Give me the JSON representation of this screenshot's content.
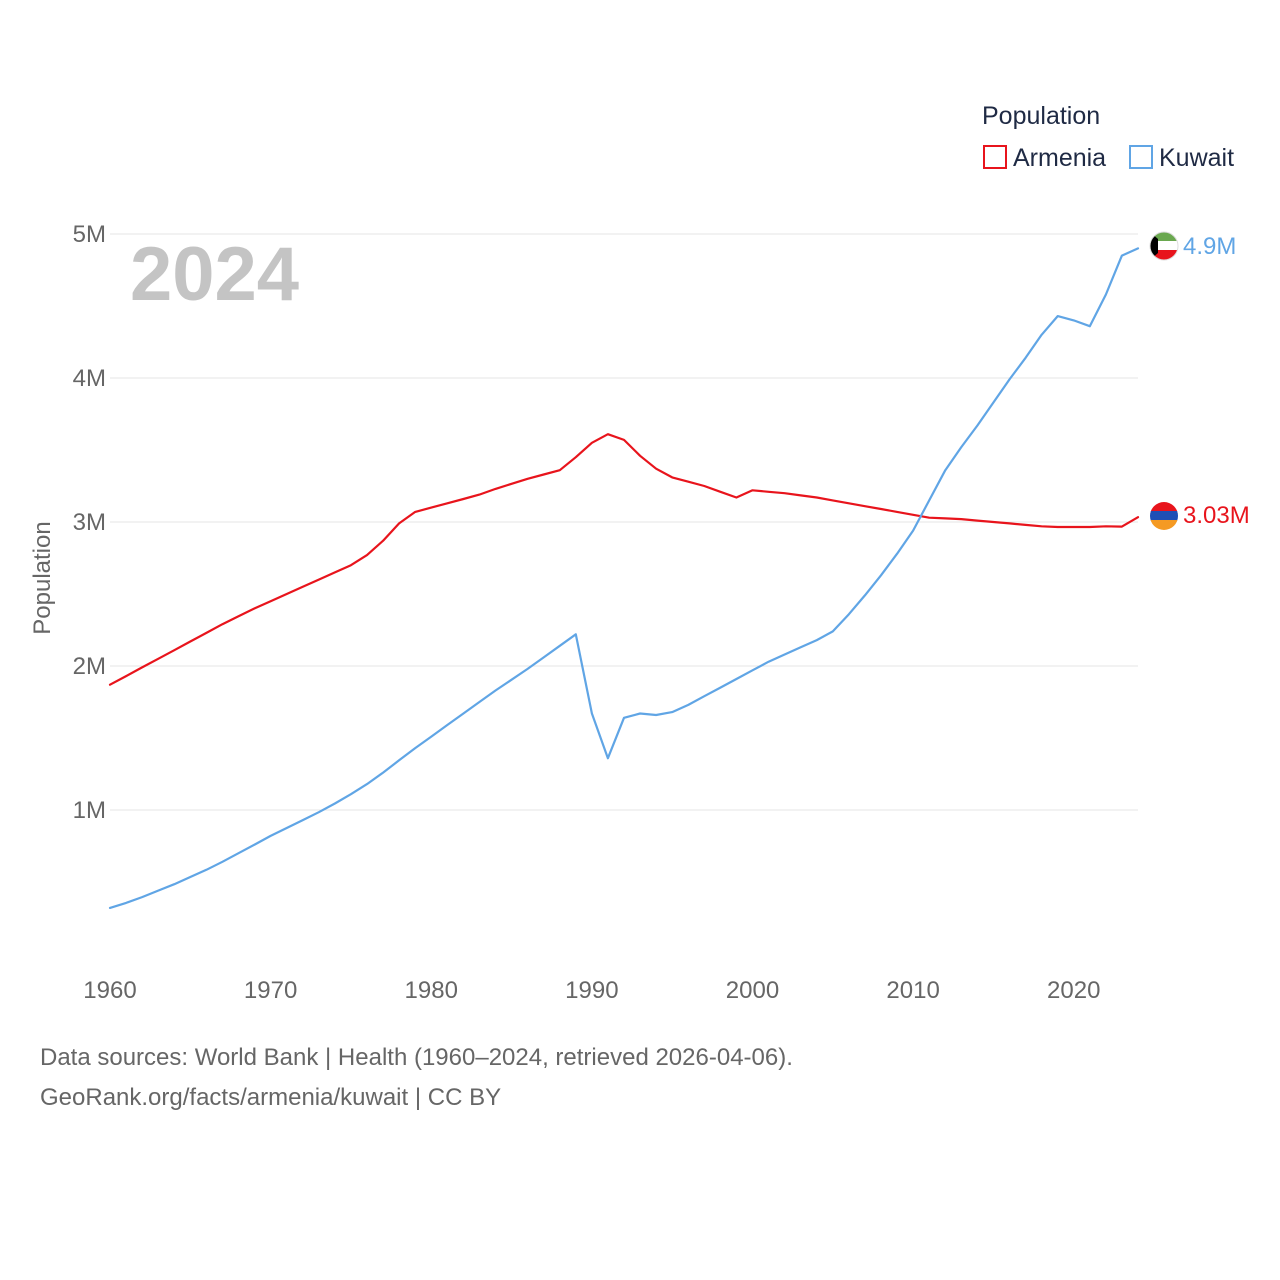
{
  "chart_data": {
    "type": "line",
    "year_watermark": "2024",
    "ylabel": "Population",
    "xlabel": "",
    "legend_title": "Population",
    "legend_position": "top-right",
    "xlim": [
      1960,
      2024
    ],
    "ylim": [
      0,
      5000000
    ],
    "x_ticks": [
      1960,
      1970,
      1980,
      1990,
      2000,
      2010,
      2020
    ],
    "x_tick_labels": [
      "1960",
      "1970",
      "1980",
      "1990",
      "2000",
      "2010",
      "2020"
    ],
    "y_ticks": [
      1000000,
      2000000,
      3000000,
      4000000,
      5000000
    ],
    "y_tick_labels": [
      "1M",
      "2M",
      "3M",
      "4M",
      "5M"
    ],
    "grid": true,
    "x": [
      1960,
      1961,
      1962,
      1963,
      1964,
      1965,
      1966,
      1967,
      1968,
      1969,
      1970,
      1971,
      1972,
      1973,
      1974,
      1975,
      1976,
      1977,
      1978,
      1979,
      1980,
      1981,
      1982,
      1983,
      1984,
      1985,
      1986,
      1987,
      1988,
      1989,
      1990,
      1991,
      1992,
      1993,
      1994,
      1995,
      1996,
      1997,
      1998,
      1999,
      2000,
      2001,
      2002,
      2003,
      2004,
      2005,
      2006,
      2007,
      2008,
      2009,
      2010,
      2011,
      2012,
      2013,
      2014,
      2015,
      2016,
      2017,
      2018,
      2019,
      2020,
      2021,
      2022,
      2023,
      2024
    ],
    "series": [
      {
        "name": "Armenia",
        "color": "#e8141c",
        "end_label": "3.03M",
        "flag": "armenia-flag",
        "values": [
          1870000,
          1930000,
          1990000,
          2050000,
          2110000,
          2170000,
          2230000,
          2290000,
          2345000,
          2400000,
          2450000,
          2500000,
          2550000,
          2600000,
          2650000,
          2700000,
          2770000,
          2870000,
          2990000,
          3070000,
          3100000,
          3130000,
          3160000,
          3190000,
          3230000,
          3265000,
          3300000,
          3330000,
          3360000,
          3450000,
          3550000,
          3610000,
          3570000,
          3460000,
          3370000,
          3310000,
          3280000,
          3250000,
          3210000,
          3170000,
          3220000,
          3210000,
          3200000,
          3185000,
          3170000,
          3150000,
          3130000,
          3110000,
          3090000,
          3070000,
          3050000,
          3030000,
          3025000,
          3020000,
          3010000,
          3000000,
          2990000,
          2980000,
          2970000,
          2965000,
          2965000,
          2965000,
          2970000,
          2968000,
          3033000
        ]
      },
      {
        "name": "Kuwait",
        "color": "#60a5e5",
        "end_label": "4.9M",
        "flag": "kuwait-flag",
        "values": [
          320000,
          355000,
          395000,
          440000,
          485000,
          535000,
          585000,
          640000,
          700000,
          760000,
          820000,
          875000,
          930000,
          985000,
          1045000,
          1110000,
          1180000,
          1260000,
          1345000,
          1430000,
          1510000,
          1590000,
          1670000,
          1750000,
          1830000,
          1905000,
          1980000,
          2060000,
          2140000,
          2220000,
          1670000,
          1360000,
          1640000,
          1670000,
          1660000,
          1680000,
          1730000,
          1790000,
          1850000,
          1910000,
          1970000,
          2030000,
          2080000,
          2130000,
          2180000,
          2240000,
          2360000,
          2490000,
          2630000,
          2780000,
          2940000,
          3150000,
          3360000,
          3520000,
          3670000,
          3830000,
          3990000,
          4140000,
          4300000,
          4430000,
          4400000,
          4360000,
          4580000,
          4850000,
          4900000
        ]
      }
    ]
  },
  "footer": {
    "source_line": "Data sources: World Bank | Health (1960–2024, retrieved 2026-04-06).",
    "url_line": "GeoRank.org/facts/armenia/kuwait | CC BY"
  }
}
